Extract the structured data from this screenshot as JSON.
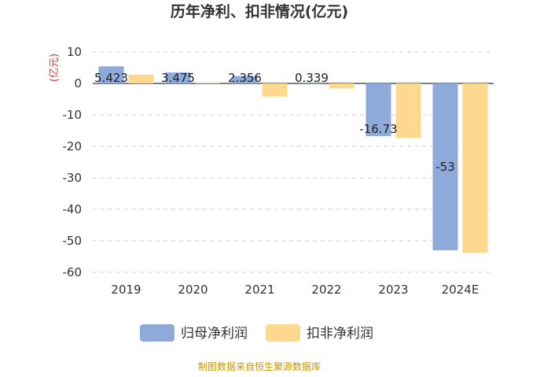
{
  "chart_data": {
    "type": "bar",
    "title": "历年净利、扣非情况(亿元)",
    "ylabel": "(亿元)",
    "categories": [
      "2019",
      "2020",
      "2021",
      "2022",
      "2023",
      "2024E"
    ],
    "series": [
      {
        "name": "归母净利润",
        "color": "#8eaadb",
        "values": [
          5.423,
          3.475,
          2.356,
          0.339,
          -16.73,
          -53
        ]
      },
      {
        "name": "扣非净利润",
        "color": "#ffd88f",
        "values": [
          2.8,
          0.3,
          -4.2,
          -1.6,
          -17.3,
          -53.8
        ]
      }
    ],
    "data_labels": [
      "5.423",
      "3.475",
      "2.356",
      "0.339",
      "-16.73",
      "-53"
    ],
    "yticks": [
      "10",
      "0",
      "-10",
      "-20",
      "-30",
      "-40",
      "-50",
      "-60"
    ],
    "ylim": [
      -60,
      10
    ],
    "grid": true,
    "legend_position": "bottom"
  },
  "source_note": "制图数据来自恒生聚源数据库"
}
